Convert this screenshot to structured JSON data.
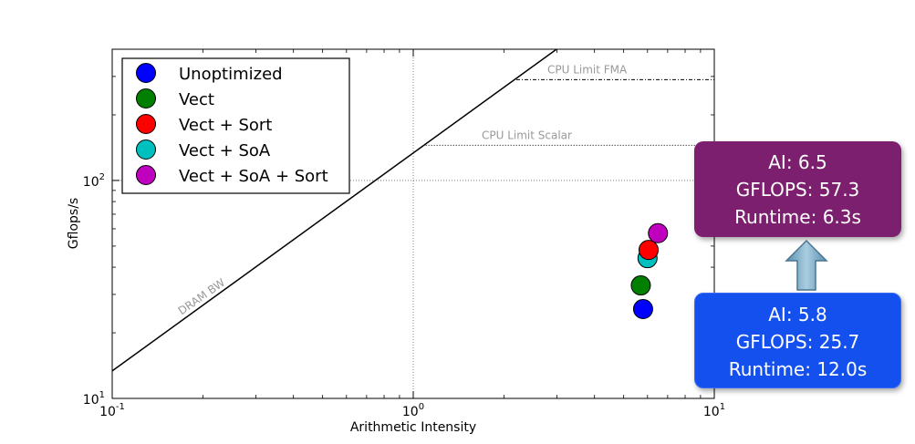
{
  "chart_data": {
    "type": "scatter",
    "title": "",
    "xlabel": "Arithmetic Intensity",
    "ylabel": "Gflops/s",
    "xscale": "log",
    "yscale": "log",
    "xlim": [
      0.1,
      10
    ],
    "ylim": [
      10,
      400
    ],
    "x_ticks": [
      {
        "value": 0.1,
        "base": "10",
        "exp": "-1"
      },
      {
        "value": 1,
        "base": "10",
        "exp": "0"
      },
      {
        "value": 10,
        "base": "10",
        "exp": "1"
      }
    ],
    "y_ticks": [
      {
        "value": 10,
        "base": "10",
        "exp": "1"
      },
      {
        "value": 100,
        "base": "10",
        "exp": "2"
      }
    ],
    "grid": "dotted at major ticks",
    "legend_position": "top-left",
    "series": [
      {
        "name": "Unoptimized",
        "color": "#0000ff",
        "x": 5.8,
        "y": 25.7
      },
      {
        "name": "Vect",
        "color": "#007f00",
        "x": 5.7,
        "y": 33
      },
      {
        "name": "Vect + Sort",
        "color": "#ff0000",
        "x": 6.05,
        "y": 48
      },
      {
        "name": "Vect + SoA",
        "color": "#00bfbf",
        "x": 6.0,
        "y": 44
      },
      {
        "name": "Vect + SoA + Sort",
        "color": "#bf00bf",
        "x": 6.5,
        "y": 57.3
      }
    ],
    "rooflines": {
      "dram": {
        "label": "DRAM BW",
        "slope_gflops_per_ai": 133.7
      },
      "cpu_fma": {
        "label": "CPU Limit FMA",
        "gflops": 290,
        "from_ai": 2.2
      },
      "cpu_scalar": {
        "label": "CPU Limit Scalar",
        "gflops": 145,
        "from_ai": 1.1
      }
    },
    "annotations": [
      {
        "id": "optimized",
        "color": "#7b1f6e",
        "lines": [
          "AI: 6.5",
          "GFLOPS: 57.3",
          "Runtime: 6.3s"
        ]
      },
      {
        "id": "baseline",
        "color": "#1450ee",
        "lines": [
          "AI: 5.8",
          "GFLOPS: 25.7",
          "Runtime: 12.0s"
        ]
      }
    ]
  }
}
